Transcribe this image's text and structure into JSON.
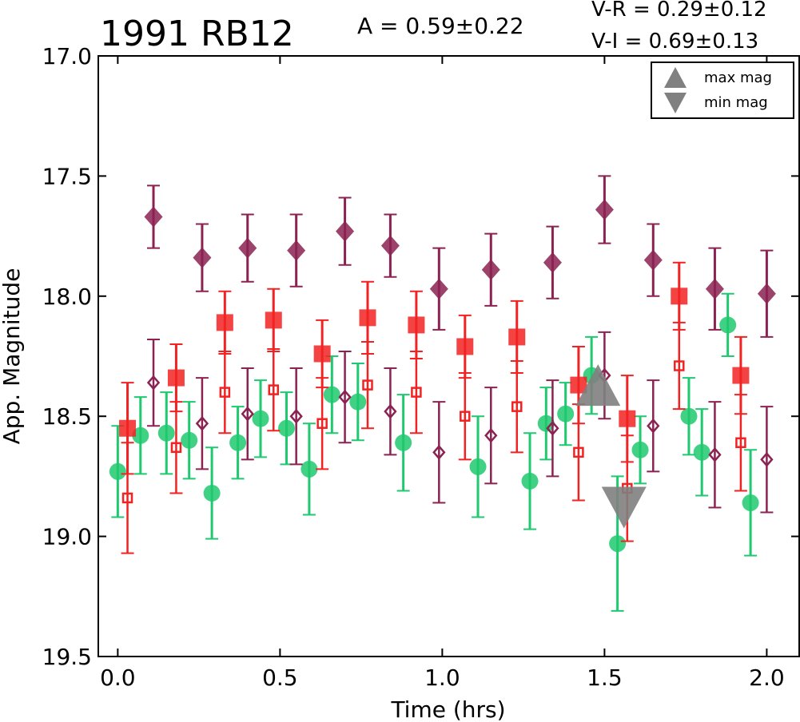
{
  "chart_data": {
    "type": "scatter",
    "title": "1991 RB12",
    "annotations": {
      "amplitude": "A  = 0.59±0.22",
      "vr": "V-R = 0.29±0.12",
      "vi": "V-I  = 0.69±0.13"
    },
    "xlabel": "Time (hrs)",
    "ylabel": "App. Magnitude",
    "xlim": [
      -0.06,
      2.1
    ],
    "ylim": [
      19.5,
      17.0
    ],
    "y_inverted": true,
    "xticks": [
      "0.0",
      "0.5",
      "1.0",
      "1.5",
      "2.0"
    ],
    "yticks": [
      "17.0",
      "17.5",
      "18.0",
      "18.5",
      "19.0",
      "19.5"
    ],
    "xtick_values": [
      0.0,
      0.5,
      1.0,
      1.5,
      2.0
    ],
    "ytick_values": [
      17.0,
      17.5,
      18.0,
      18.5,
      19.0,
      19.5
    ],
    "legend": {
      "placement": "top-right",
      "entries": [
        {
          "label": "max mag",
          "marker": "triangle-up",
          "color": "#808080"
        },
        {
          "label": "min mag",
          "marker": "triangle-down",
          "color": "#808080"
        }
      ]
    },
    "series": [
      {
        "marker": "circle",
        "filled": true,
        "color": "#1ec96f",
        "points": [
          {
            "x": 0.0,
            "y": 18.73,
            "err": 0.19
          },
          {
            "x": 0.07,
            "y": 18.58,
            "err": 0.16
          },
          {
            "x": 0.15,
            "y": 18.57,
            "err": 0.17
          },
          {
            "x": 0.22,
            "y": 18.6,
            "err": 0.16
          },
          {
            "x": 0.29,
            "y": 18.82,
            "err": 0.19
          },
          {
            "x": 0.37,
            "y": 18.61,
            "err": 0.15
          },
          {
            "x": 0.44,
            "y": 18.51,
            "err": 0.16
          },
          {
            "x": 0.52,
            "y": 18.55,
            "err": 0.15
          },
          {
            "x": 0.59,
            "y": 18.72,
            "err": 0.19
          },
          {
            "x": 0.66,
            "y": 18.41,
            "err": 0.16
          },
          {
            "x": 0.74,
            "y": 18.44,
            "err": 0.16
          },
          {
            "x": 0.88,
            "y": 18.61,
            "err": 0.2
          },
          {
            "x": 1.11,
            "y": 18.71,
            "err": 0.21
          },
          {
            "x": 1.27,
            "y": 18.77,
            "err": 0.2
          },
          {
            "x": 1.32,
            "y": 18.53,
            "err": 0.15
          },
          {
            "x": 1.38,
            "y": 18.49,
            "err": 0.13
          },
          {
            "x": 1.46,
            "y": 18.33,
            "err": 0.16
          },
          {
            "x": 1.54,
            "y": 19.03,
            "err": 0.28
          },
          {
            "x": 1.61,
            "y": 18.64,
            "err": 0.14
          },
          {
            "x": 1.76,
            "y": 18.5,
            "err": 0.16
          },
          {
            "x": 1.8,
            "y": 18.65,
            "err": 0.18
          },
          {
            "x": 1.88,
            "y": 18.12,
            "err": 0.13
          },
          {
            "x": 1.95,
            "y": 18.86,
            "err": 0.22
          }
        ]
      },
      {
        "marker": "square",
        "filled": true,
        "color": "#f22222",
        "points": [
          {
            "x": 0.03,
            "y": 18.55,
            "err": 0.19
          },
          {
            "x": 0.18,
            "y": 18.34,
            "err": 0.14
          },
          {
            "x": 0.33,
            "y": 18.11,
            "err": 0.13
          },
          {
            "x": 0.48,
            "y": 18.1,
            "err": 0.13
          },
          {
            "x": 0.63,
            "y": 18.24,
            "err": 0.14
          },
          {
            "x": 0.77,
            "y": 18.09,
            "err": 0.15
          },
          {
            "x": 0.92,
            "y": 18.12,
            "err": 0.14
          },
          {
            "x": 1.07,
            "y": 18.21,
            "err": 0.13
          },
          {
            "x": 1.23,
            "y": 18.17,
            "err": 0.15
          },
          {
            "x": 1.42,
            "y": 18.37,
            "err": 0.16
          },
          {
            "x": 1.57,
            "y": 18.51,
            "err": 0.18
          },
          {
            "x": 1.73,
            "y": 18.0,
            "err": 0.14
          },
          {
            "x": 1.92,
            "y": 18.33,
            "err": 0.16
          }
        ]
      },
      {
        "marker": "square",
        "filled": false,
        "color": "#f22222",
        "points": [
          {
            "x": 0.03,
            "y": 18.84,
            "err": 0.23
          },
          {
            "x": 0.18,
            "y": 18.63,
            "err": 0.19
          },
          {
            "x": 0.33,
            "y": 18.4,
            "err": 0.17
          },
          {
            "x": 0.48,
            "y": 18.39,
            "err": 0.17
          },
          {
            "x": 0.63,
            "y": 18.53,
            "err": 0.19
          },
          {
            "x": 0.77,
            "y": 18.37,
            "err": 0.18
          },
          {
            "x": 0.92,
            "y": 18.4,
            "err": 0.17
          },
          {
            "x": 1.07,
            "y": 18.5,
            "err": 0.18
          },
          {
            "x": 1.23,
            "y": 18.46,
            "err": 0.19
          },
          {
            "x": 1.42,
            "y": 18.65,
            "err": 0.2
          },
          {
            "x": 1.57,
            "y": 18.8,
            "err": 0.22
          },
          {
            "x": 1.73,
            "y": 18.29,
            "err": 0.18
          },
          {
            "x": 1.92,
            "y": 18.61,
            "err": 0.2
          }
        ]
      },
      {
        "marker": "diamond",
        "filled": true,
        "color": "#8b2252",
        "points": [
          {
            "x": 0.11,
            "y": 17.67,
            "err": 0.13
          },
          {
            "x": 0.26,
            "y": 17.84,
            "err": 0.14
          },
          {
            "x": 0.4,
            "y": 17.8,
            "err": 0.14
          },
          {
            "x": 0.55,
            "y": 17.81,
            "err": 0.15
          },
          {
            "x": 0.7,
            "y": 17.73,
            "err": 0.14
          },
          {
            "x": 0.84,
            "y": 17.79,
            "err": 0.13
          },
          {
            "x": 0.99,
            "y": 17.97,
            "err": 0.17
          },
          {
            "x": 1.15,
            "y": 17.89,
            "err": 0.15
          },
          {
            "x": 1.34,
            "y": 17.86,
            "err": 0.15
          },
          {
            "x": 1.5,
            "y": 17.64,
            "err": 0.14
          },
          {
            "x": 1.65,
            "y": 17.85,
            "err": 0.15
          },
          {
            "x": 1.84,
            "y": 17.97,
            "err": 0.17
          },
          {
            "x": 2.0,
            "y": 17.99,
            "err": 0.18
          }
        ]
      },
      {
        "marker": "diamond",
        "filled": false,
        "color": "#8b2252",
        "points": [
          {
            "x": 0.11,
            "y": 18.36,
            "err": 0.18
          },
          {
            "x": 0.26,
            "y": 18.53,
            "err": 0.19
          },
          {
            "x": 0.4,
            "y": 18.49,
            "err": 0.19
          },
          {
            "x": 0.55,
            "y": 18.5,
            "err": 0.2
          },
          {
            "x": 0.7,
            "y": 18.42,
            "err": 0.19
          },
          {
            "x": 0.84,
            "y": 18.48,
            "err": 0.18
          },
          {
            "x": 0.99,
            "y": 18.65,
            "err": 0.21
          },
          {
            "x": 1.15,
            "y": 18.58,
            "err": 0.2
          },
          {
            "x": 1.34,
            "y": 18.55,
            "err": 0.2
          },
          {
            "x": 1.5,
            "y": 18.33,
            "err": 0.18
          },
          {
            "x": 1.65,
            "y": 18.54,
            "err": 0.19
          },
          {
            "x": 1.84,
            "y": 18.66,
            "err": 0.22
          },
          {
            "x": 2.0,
            "y": 18.68,
            "err": 0.22
          }
        ]
      }
    ],
    "extrema": [
      {
        "type": "max",
        "x": 1.48,
        "y": 18.37,
        "color": "#808080"
      },
      {
        "type": "min",
        "x": 1.56,
        "y": 18.88,
        "color": "#808080"
      }
    ]
  }
}
